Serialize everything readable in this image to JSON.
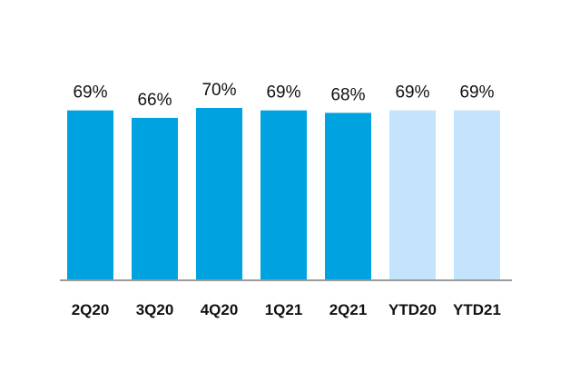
{
  "chart_data": {
    "type": "bar",
    "categories": [
      "2Q20",
      "3Q20",
      "4Q20",
      "1Q21",
      "2Q21",
      "YTD20",
      "YTD21"
    ],
    "values": [
      69,
      66,
      70,
      69,
      68,
      69,
      69
    ],
    "value_labels": [
      "69%",
      "66%",
      "70%",
      "69%",
      "68%",
      "69%",
      "69%"
    ],
    "ylim": [
      0,
      70
    ],
    "grid": false,
    "colors": {
      "quarter": "#00a3e0",
      "ytd": "#c3e4fb",
      "axis": "#9a9a9a"
    },
    "bar_kinds": [
      "quarter",
      "quarter",
      "quarter",
      "quarter",
      "quarter",
      "ytd",
      "ytd"
    ]
  }
}
